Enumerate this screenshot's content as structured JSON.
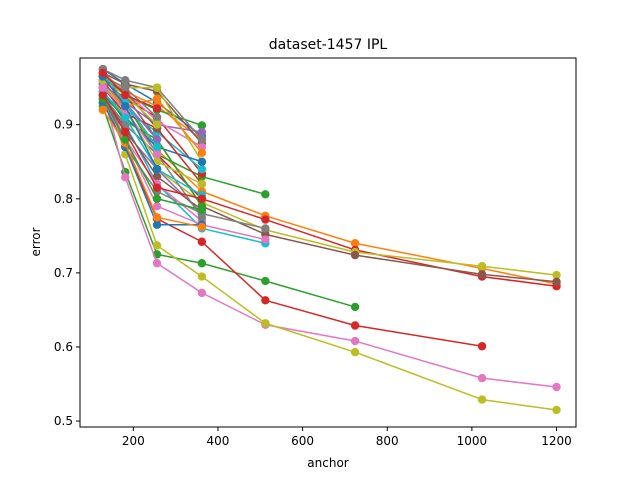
{
  "chart_data": {
    "type": "line",
    "title": "dataset-1457 IPL",
    "xlabel": "anchor",
    "ylabel": "error",
    "xlim": [
      74,
      1246
    ],
    "ylim": [
      0.492,
      0.99
    ],
    "xticks": [
      200,
      400,
      600,
      800,
      1000,
      1200
    ],
    "yticks": [
      0.5,
      0.6,
      0.7,
      0.8,
      0.9
    ],
    "ytick_labels": [
      "0.5",
      "0.6",
      "0.7",
      "0.8",
      "0.9"
    ],
    "grid": false,
    "legend": "none",
    "series": [
      {
        "color": "#2ca02c",
        "x": [
          128,
          181,
          256,
          362,
          512,
          724
        ],
        "values": [
          0.925,
          0.836,
          0.725,
          0.713,
          0.689,
          0.654
        ]
      },
      {
        "color": "#d62728",
        "x": [
          128,
          181,
          256,
          362,
          512,
          724,
          1024
        ],
        "values": [
          0.935,
          0.87,
          0.773,
          0.742,
          0.663,
          0.629,
          0.601
        ]
      },
      {
        "color": "#e377c2",
        "x": [
          128,
          181,
          256,
          362,
          512,
          724,
          1024,
          1200
        ],
        "values": [
          0.945,
          0.829,
          0.713,
          0.673,
          0.63,
          0.608,
          0.558,
          0.546
        ]
      },
      {
        "color": "#bcbd22",
        "x": [
          128,
          181,
          256,
          362,
          512,
          724,
          1024,
          1200
        ],
        "values": [
          0.955,
          0.86,
          0.737,
          0.695,
          0.632,
          0.593,
          0.529,
          0.515
        ]
      },
      {
        "color": "#ff7f0e",
        "x": [
          128,
          181,
          256,
          362,
          512,
          724,
          1024,
          1200
        ],
        "values": [
          0.965,
          0.93,
          0.866,
          0.81,
          0.777,
          0.74,
          0.706,
          0.685
        ]
      },
      {
        "color": "#d62728",
        "x": [
          128,
          181,
          256,
          362,
          512,
          724,
          1024,
          1200
        ],
        "values": [
          0.96,
          0.92,
          0.86,
          0.8,
          0.772,
          0.731,
          0.695,
          0.682
        ]
      },
      {
        "color": "#bcbd22",
        "x": [
          128,
          181,
          256,
          362,
          512,
          724,
          1024,
          1200
        ],
        "values": [
          0.955,
          0.91,
          0.84,
          0.795,
          0.758,
          0.728,
          0.709,
          0.697
        ]
      },
      {
        "color": "#8c564b",
        "x": [
          128,
          181,
          256,
          362,
          512,
          724,
          1024,
          1200
        ],
        "values": [
          0.97,
          0.94,
          0.88,
          0.79,
          0.752,
          0.724,
          0.698,
          0.688
        ]
      },
      {
        "color": "#2ca02c",
        "x": [
          128,
          181,
          256,
          362,
          512
        ],
        "values": [
          0.95,
          0.93,
          0.86,
          0.83,
          0.806
        ]
      },
      {
        "color": "#17becf",
        "x": [
          128,
          181,
          256,
          362,
          512
        ],
        "values": [
          0.96,
          0.9,
          0.82,
          0.76,
          0.74
        ]
      },
      {
        "color": "#e377c2",
        "x": [
          128,
          181,
          256,
          362,
          512
        ],
        "values": [
          0.945,
          0.88,
          0.79,
          0.765,
          0.745
        ]
      },
      {
        "color": "#7f7f7f",
        "x": [
          128,
          181,
          256,
          362,
          512
        ],
        "values": [
          0.95,
          0.87,
          0.81,
          0.78,
          0.76
        ]
      },
      {
        "color": "#1f77b4",
        "x": [
          128,
          181,
          256,
          362
        ],
        "values": [
          0.975,
          0.955,
          0.93,
          0.885
        ]
      },
      {
        "color": "#ff7f0e",
        "x": [
          128,
          181,
          256,
          362
        ],
        "values": [
          0.97,
          0.945,
          0.925,
          0.88
        ]
      },
      {
        "color": "#2ca02c",
        "x": [
          128,
          181,
          256,
          362
        ],
        "values": [
          0.965,
          0.94,
          0.92,
          0.899
        ]
      },
      {
        "color": "#d62728",
        "x": [
          128,
          181,
          256,
          362
        ],
        "values": [
          0.96,
          0.935,
          0.91,
          0.834
        ]
      },
      {
        "color": "#9467bd",
        "x": [
          128,
          181,
          256,
          362
        ],
        "values": [
          0.955,
          0.93,
          0.9,
          0.89
        ]
      },
      {
        "color": "#8c564b",
        "x": [
          128,
          181,
          256,
          362
        ],
        "values": [
          0.97,
          0.955,
          0.945,
          0.875
        ]
      },
      {
        "color": "#e377c2",
        "x": [
          128,
          181,
          256,
          362
        ],
        "values": [
          0.965,
          0.945,
          0.905,
          0.87
        ]
      },
      {
        "color": "#7f7f7f",
        "x": [
          128,
          181,
          256,
          362
        ],
        "values": [
          0.975,
          0.96,
          0.95,
          0.88
        ]
      },
      {
        "color": "#bcbd22",
        "x": [
          128,
          181,
          256,
          362
        ],
        "values": [
          0.96,
          0.95,
          0.95,
          0.85
        ]
      },
      {
        "color": "#17becf",
        "x": [
          128,
          181,
          256,
          362
        ],
        "values": [
          0.95,
          0.92,
          0.89,
          0.84
        ]
      },
      {
        "color": "#1f77b4",
        "x": [
          128,
          181,
          256,
          362
        ],
        "values": [
          0.94,
          0.91,
          0.87,
          0.85
        ]
      },
      {
        "color": "#ff7f0e",
        "x": [
          128,
          181,
          256,
          362
        ],
        "values": [
          0.955,
          0.925,
          0.935,
          0.862
        ]
      },
      {
        "color": "#2ca02c",
        "x": [
          128,
          181,
          256,
          362
        ],
        "values": [
          0.945,
          0.905,
          0.88,
          0.79
        ]
      },
      {
        "color": "#d62728",
        "x": [
          128,
          181,
          256,
          362
        ],
        "values": [
          0.95,
          0.915,
          0.895,
          0.82
        ]
      },
      {
        "color": "#9467bd",
        "x": [
          128,
          181,
          256,
          362
        ],
        "values": [
          0.935,
          0.89,
          0.84,
          0.78
        ]
      },
      {
        "color": "#8c564b",
        "x": [
          128,
          181,
          256,
          362
        ],
        "values": [
          0.94,
          0.895,
          0.83,
          0.785
        ]
      },
      {
        "color": "#e377c2",
        "x": [
          128,
          181,
          256,
          362
        ],
        "values": [
          0.93,
          0.88,
          0.82,
          0.77
        ]
      },
      {
        "color": "#7f7f7f",
        "x": [
          128,
          181,
          256,
          362
        ],
        "values": [
          0.94,
          0.9,
          0.86,
          0.775
        ]
      },
      {
        "color": "#bcbd22",
        "x": [
          128,
          181,
          256,
          362
        ],
        "values": [
          0.955,
          0.92,
          0.85,
          0.82
        ]
      },
      {
        "color": "#17becf",
        "x": [
          128,
          181,
          256,
          362
        ],
        "values": [
          0.945,
          0.91,
          0.84,
          0.805
        ]
      },
      {
        "color": "#1f77b4",
        "x": [
          128,
          181,
          256,
          362
        ],
        "values": [
          0.93,
          0.87,
          0.765,
          0.765
        ]
      },
      {
        "color": "#ff7f0e",
        "x": [
          128,
          181,
          256,
          362
        ],
        "values": [
          0.92,
          0.875,
          0.775,
          0.762
        ]
      },
      {
        "color": "#2ca02c",
        "x": [
          128,
          181,
          256,
          362
        ],
        "values": [
          0.935,
          0.88,
          0.8,
          0.785
        ]
      },
      {
        "color": "#d62728",
        "x": [
          128,
          181,
          256,
          362
        ],
        "values": [
          0.94,
          0.89,
          0.815,
          0.8
        ]
      },
      {
        "color": "#9467bd",
        "x": [
          128,
          181,
          256
        ],
        "values": [
          0.955,
          0.93,
          0.88
        ]
      },
      {
        "color": "#8c564b",
        "x": [
          128,
          181,
          256
        ],
        "values": [
          0.96,
          0.945,
          0.895
        ]
      },
      {
        "color": "#e377c2",
        "x": [
          128,
          181,
          256
        ],
        "values": [
          0.95,
          0.92,
          0.86
        ]
      },
      {
        "color": "#7f7f7f",
        "x": [
          128,
          181,
          256
        ],
        "values": [
          0.965,
          0.95,
          0.91
        ]
      },
      {
        "color": "#bcbd22",
        "x": [
          128,
          181,
          256
        ],
        "values": [
          0.96,
          0.94,
          0.9
        ]
      },
      {
        "color": "#17becf",
        "x": [
          128,
          181,
          256
        ],
        "values": [
          0.97,
          0.93,
          0.87
        ]
      },
      {
        "color": "#1f77b4",
        "x": [
          128,
          181,
          256
        ],
        "values": [
          0.965,
          0.925,
          0.84
        ]
      },
      {
        "color": "#d62728",
        "x": [
          128,
          181,
          256
        ],
        "values": [
          0.97,
          0.94,
          0.922
        ]
      }
    ]
  }
}
